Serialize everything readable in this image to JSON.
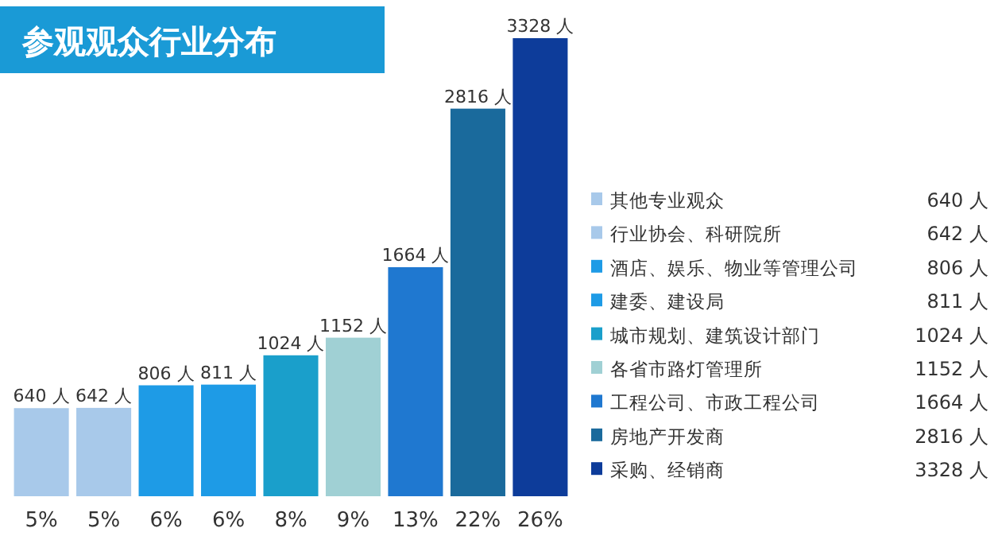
{
  "chart_data": {
    "type": "bar",
    "title": "参观观众行业分布",
    "categories": [
      "5%",
      "5%",
      "6%",
      "6%",
      "8%",
      "9%",
      "13%",
      "22%",
      "26%"
    ],
    "stacked": true,
    "series": [
      {
        "name": "其他专业观众",
        "color": "#a8c9ea",
        "values": [
          640,
          null,
          null,
          null,
          null,
          null,
          null,
          null,
          null
        ],
        "value_labels": [
          "640 人",
          null,
          null,
          null,
          null,
          null,
          null,
          null,
          null
        ]
      },
      {
        "name": "行业协会、科研院所",
        "color": "#a8c9ea",
        "values": [
          null,
          642,
          null,
          null,
          null,
          null,
          null,
          null,
          null
        ],
        "value_labels": [
          null,
          "642 人",
          null,
          null,
          null,
          null,
          null,
          null,
          null
        ]
      },
      {
        "name": "酒店、娱乐、物业等管理公司",
        "color": "#1e9be6",
        "values": [
          null,
          null,
          806,
          null,
          null,
          null,
          null,
          null,
          null
        ],
        "value_labels": [
          null,
          null,
          "806 人",
          null,
          null,
          null,
          null,
          null,
          null
        ]
      },
      {
        "name": "建委、建设局",
        "color": "#1e9be6",
        "values": [
          null,
          null,
          null,
          811,
          null,
          null,
          null,
          null,
          null
        ],
        "value_labels": [
          null,
          null,
          null,
          "811 人",
          null,
          null,
          null,
          null,
          null
        ]
      },
      {
        "name": "城市规划、建筑设计部门",
        "color": "#1a9fcb",
        "values": [
          null,
          null,
          null,
          null,
          1024,
          null,
          null,
          null,
          null
        ],
        "value_labels": [
          null,
          null,
          null,
          null,
          "1024 人",
          null,
          null,
          null,
          null
        ]
      },
      {
        "name": "各省市路灯管理所",
        "color": "#a0d0d4",
        "values": [
          null,
          null,
          null,
          null,
          null,
          1152,
          null,
          null,
          null
        ],
        "value_labels": [
          null,
          null,
          null,
          null,
          null,
          "1152 人",
          null,
          null,
          null
        ]
      },
      {
        "name": "工程公司、市政工程公司",
        "color": "#1f78d0",
        "values": [
          null,
          null,
          null,
          null,
          null,
          null,
          1664,
          null,
          null
        ],
        "value_labels": [
          null,
          null,
          null,
          null,
          null,
          null,
          "1664 人",
          null,
          null
        ]
      },
      {
        "name": "房地产开发商",
        "color": "#1a6a9c",
        "values": [
          null,
          null,
          null,
          null,
          null,
          null,
          null,
          2816,
          null
        ],
        "value_labels": [
          null,
          null,
          null,
          null,
          null,
          null,
          null,
          "2816 人",
          null
        ]
      },
      {
        "name": "采购、经销商",
        "color": "#0d3c9a",
        "values": [
          null,
          null,
          null,
          null,
          null,
          null,
          null,
          null,
          3328
        ],
        "value_labels": [
          null,
          null,
          null,
          null,
          null,
          null,
          null,
          null,
          "3328 人"
        ]
      }
    ],
    "legend": "right",
    "grid": false
  }
}
